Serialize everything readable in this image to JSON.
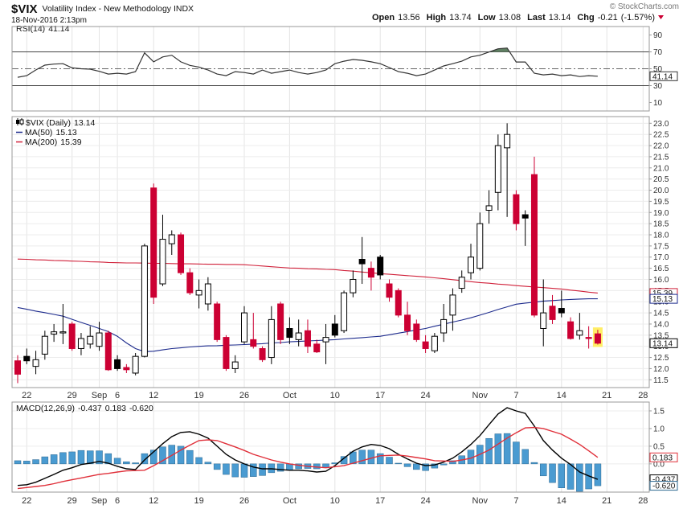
{
  "header": {
    "symbol": "$VIX",
    "name": "Volatility Index - New Methodology INDX",
    "timestamp": "18-Nov-2016 2:13pm",
    "source": "© StockCharts.com",
    "quote": [
      {
        "label": "Open",
        "value": 13.56
      },
      {
        "label": "High",
        "value": 13.74
      },
      {
        "label": "Low",
        "value": 13.08
      },
      {
        "label": "Last",
        "value": 13.14
      },
      {
        "label": "Chg",
        "value": -0.21,
        "percent": "(-1.57%)"
      }
    ],
    "change_color": "#cc0033"
  },
  "chart_data": [
    {
      "type": "line",
      "xgrid": true,
      "grid": false,
      "ylim": [
        0,
        100
      ],
      "yticks": [
        90,
        70,
        50,
        30,
        10
      ],
      "reference_lines": [
        70,
        30
      ],
      "midline": 50,
      "fill_color": "#5f7f62",
      "series": [
        {
          "name": "RSI(14)",
          "color": "#333333",
          "values": [
            39.9,
            41.8,
            48.6,
            54.3,
            55.5,
            56.0,
            51.0,
            50.0,
            49.5,
            47.0,
            43.7,
            44.7,
            43.7,
            46.6,
            68.8,
            58.2,
            64.0,
            66.0,
            58.2,
            54.0,
            52.0,
            48.5,
            43.7,
            41.8,
            46.6,
            45.5,
            43.7,
            48.5,
            44.7,
            46.6,
            48.5,
            45.5,
            43.7,
            45.5,
            48.5,
            56.0,
            59.0,
            61.0,
            60.0,
            58.2,
            56.0,
            51.4,
            46.6,
            44.7,
            41.8,
            43.7,
            48.5,
            53.3,
            56.0,
            59.0,
            64.0,
            66.0,
            69.8,
            73.6,
            74.6,
            58.0,
            58.0,
            44.7,
            42.8,
            43.7,
            41.8,
            42.8,
            40.8,
            41.8,
            41.14,
            null,
            null,
            null,
            null,
            null
          ]
        }
      ]
    },
    {
      "type": "candlestick",
      "title": "$VIX (Daily)",
      "xgrid": true,
      "grid": true,
      "up_color": "#000000",
      "down_color": "#cc0033",
      "highlight_color": "#ffee66",
      "categories": [
        null,
        "22",
        null,
        null,
        null,
        null,
        "29",
        null,
        null,
        "Sep",
        null,
        "6",
        null,
        null,
        null,
        "12",
        null,
        null,
        null,
        null,
        "19",
        null,
        null,
        null,
        null,
        "26",
        null,
        null,
        null,
        null,
        "Oct",
        null,
        null,
        null,
        null,
        "10",
        null,
        null,
        null,
        null,
        "17",
        null,
        null,
        null,
        null,
        "24",
        null,
        null,
        null,
        null,
        null,
        "Nov",
        null,
        null,
        null,
        "7",
        null,
        null,
        null,
        null,
        "14",
        null,
        null,
        null,
        null,
        "21",
        null,
        null,
        null,
        "28"
      ],
      "open": [
        12.35,
        12.55,
        12.1,
        12.65,
        13.55,
        13.6,
        14.0,
        12.9,
        13.1,
        13.0,
        13.6,
        12.4,
        12.05,
        11.8,
        12.55,
        20.1,
        15.8,
        17.6,
        18.0,
        16.3,
        15.3,
        14.9,
        14.9,
        13.4,
        12.0,
        13.2,
        13.3,
        12.9,
        12.5,
        14.9,
        13.8,
        13.3,
        13.7,
        13.1,
        13.2,
        14.0,
        13.7,
        15.4,
        16.9,
        16.5,
        17.0,
        15.8,
        15.5,
        14.4,
        14.0,
        13.2,
        12.8,
        13.6,
        14.4,
        15.6,
        16.3,
        16.5,
        19.1,
        19.9,
        21.9,
        19.8,
        18.9,
        20.7,
        13.8,
        14.8,
        14.7,
        14.1,
        13.5,
        13.4,
        13.56,
        null,
        null,
        null,
        null,
        null
      ],
      "high": [
        12.6,
        12.9,
        12.8,
        13.7,
        14.0,
        14.9,
        14.1,
        13.6,
        13.9,
        14.1,
        13.7,
        12.6,
        12.2,
        12.7,
        17.6,
        20.3,
        18.9,
        18.2,
        18.1,
        16.5,
        16.0,
        16.1,
        15.0,
        13.5,
        12.6,
        14.8,
        14.5,
        13.0,
        14.8,
        15.0,
        14.3,
        14.2,
        14.2,
        13.3,
        14.0,
        14.4,
        15.5,
        16.4,
        17.9,
        16.8,
        17.1,
        16.0,
        15.6,
        15.0,
        14.2,
        13.5,
        13.6,
        14.9,
        15.6,
        16.4,
        17.6,
        19.0,
        20.0,
        22.5,
        23.0,
        20.0,
        19.1,
        21.5,
        16.0,
        15.3,
        15.5,
        14.3,
        14.5,
        13.9,
        13.74,
        null,
        null,
        null,
        null,
        null
      ],
      "low": [
        11.35,
        12.2,
        11.75,
        12.4,
        13.2,
        13.1,
        12.8,
        12.6,
        12.9,
        12.8,
        11.9,
        11.9,
        11.8,
        11.7,
        12.5,
        14.9,
        15.7,
        17.1,
        16.2,
        15.3,
        14.7,
        14.6,
        13.2,
        11.9,
        11.8,
        13.1,
        12.9,
        12.3,
        12.2,
        13.1,
        13.1,
        13.0,
        12.7,
        12.7,
        12.2,
        13.4,
        13.6,
        15.2,
        15.8,
        15.5,
        16.0,
        15.0,
        14.3,
        13.5,
        13.2,
        12.7,
        12.7,
        13.2,
        13.7,
        15.4,
        16.0,
        16.4,
        18.5,
        19.1,
        18.8,
        18.2,
        17.5,
        14.3,
        13.0,
        14.0,
        14.3,
        13.3,
        13.3,
        12.9,
        13.08,
        null,
        null,
        null,
        null,
        null
      ],
      "close": [
        11.75,
        12.35,
        12.4,
        13.45,
        13.65,
        13.65,
        12.9,
        13.35,
        13.45,
        13.6,
        11.95,
        12.0,
        11.95,
        12.55,
        17.5,
        15.2,
        17.8,
        18.0,
        16.3,
        15.4,
        15.5,
        15.8,
        13.3,
        12.0,
        12.3,
        14.5,
        13.0,
        12.4,
        14.2,
        13.3,
        13.4,
        13.6,
        13.0,
        12.75,
        13.4,
        13.5,
        15.4,
        16.0,
        16.7,
        16.1,
        16.2,
        15.2,
        14.4,
        13.7,
        13.3,
        12.9,
        13.45,
        14.2,
        15.3,
        16.1,
        17.0,
        18.5,
        19.3,
        22.0,
        22.5,
        18.5,
        18.75,
        14.4,
        14.5,
        14.2,
        14.5,
        13.35,
        13.7,
        13.35,
        13.14,
        null,
        null,
        null,
        null,
        null
      ],
      "series": [
        {
          "name": "MA(50)",
          "color": "#1c2a8c",
          "values": [
            14.74,
            14.66,
            14.58,
            14.51,
            14.43,
            14.35,
            14.21,
            14.07,
            13.94,
            13.8,
            13.66,
            13.45,
            13.15,
            12.9,
            12.76,
            12.78,
            12.84,
            12.9,
            12.93,
            12.97,
            13.0,
            13.02,
            13.03,
            13.05,
            13.06,
            13.08,
            13.1,
            13.12,
            13.15,
            13.17,
            13.2,
            13.22,
            13.24,
            13.26,
            13.28,
            13.3,
            13.33,
            13.36,
            13.39,
            13.42,
            13.45,
            13.52,
            13.59,
            13.66,
            13.73,
            13.8,
            13.9,
            13.99,
            14.09,
            14.18,
            14.28,
            14.4,
            14.52,
            14.65,
            14.77,
            14.89,
            14.94,
            14.98,
            15.03,
            15.05,
            15.08,
            15.1,
            15.12,
            15.13,
            15.13,
            null,
            null,
            null,
            null,
            null
          ]
        },
        {
          "name": "MA(200)",
          "color": "#d0213a",
          "values": [
            16.91,
            16.9,
            16.88,
            16.87,
            16.85,
            16.84,
            16.82,
            16.81,
            16.79,
            16.78,
            16.76,
            16.75,
            16.74,
            16.74,
            16.73,
            16.72,
            16.72,
            16.71,
            16.7,
            16.7,
            16.69,
            16.68,
            16.68,
            16.67,
            16.67,
            16.66,
            16.63,
            16.6,
            16.57,
            16.54,
            16.51,
            16.5,
            16.48,
            16.47,
            16.45,
            16.44,
            16.4,
            16.37,
            16.33,
            16.3,
            16.26,
            16.23,
            16.2,
            16.17,
            16.14,
            16.11,
            16.07,
            16.03,
            15.99,
            15.94,
            15.9,
            15.86,
            15.83,
            15.79,
            15.76,
            15.72,
            15.69,
            15.66,
            15.63,
            15.6,
            15.57,
            15.52,
            15.48,
            15.43,
            15.39,
            null,
            null,
            null,
            null,
            null
          ]
        }
      ],
      "ylim": [
        11.15,
        23.3
      ],
      "yticks": [
        11.5,
        {
          "value": 12,
          "label": "12.0"
        },
        12.5,
        {
          "value": 13,
          "label": "13.0"
        },
        13.5,
        {
          "value": 14,
          "label": "14.0"
        },
        14.5,
        {
          "value": 15,
          "label": "15.0"
        },
        15.5,
        {
          "value": 16,
          "label": "16.0"
        },
        16.5,
        {
          "value": 17,
          "label": "17.0"
        },
        17.5,
        {
          "value": 18,
          "label": "18.0"
        },
        18.5,
        {
          "value": 19,
          "label": "19.0"
        },
        19.5,
        {
          "value": 20,
          "label": "20.0"
        },
        20.5,
        {
          "value": 21,
          "label": "21.0"
        },
        21.5,
        {
          "value": 22,
          "label": "22.0"
        },
        22.5,
        {
          "value": 23,
          "label": "23.0"
        }
      ]
    },
    {
      "type": "macd",
      "title": "MACD(12,26,9)",
      "xgrid": true,
      "grid": true,
      "ylim": [
        -0.8,
        1.75
      ],
      "yticks": [
        1.5,
        {
          "value": 1,
          "label": "1.0"
        },
        0.5,
        {
          "value": 0,
          "label": "0.0"
        }
      ],
      "histogram": {
        "color": "#4a9bd1",
        "edge_color": "#2b6790",
        "values": [
          0.09,
          0.08,
          0.12,
          0.2,
          0.26,
          0.32,
          0.34,
          0.38,
          0.37,
          0.37,
          0.29,
          0.16,
          0.06,
          0.03,
          0.29,
          0.39,
          0.48,
          0.53,
          0.5,
          0.38,
          0.18,
          0.05,
          -0.16,
          -0.3,
          -0.37,
          -0.38,
          -0.36,
          -0.33,
          -0.25,
          -0.21,
          -0.18,
          -0.14,
          -0.13,
          -0.14,
          -0.1,
          0.03,
          0.21,
          0.34,
          0.39,
          0.39,
          0.29,
          0.19,
          0.02,
          -0.08,
          -0.16,
          -0.19,
          -0.12,
          -0.03,
          0.09,
          0.23,
          0.39,
          0.53,
          0.72,
          0.85,
          0.86,
          0.62,
          0.41,
          0.04,
          -0.34,
          -0.53,
          -0.68,
          -0.72,
          -0.78,
          -0.71,
          -0.62,
          null,
          null,
          null,
          null,
          null
        ],
        "value_labels": [
          null,
          null,
          null,
          null,
          null,
          null,
          null,
          null,
          null,
          null,
          null,
          null,
          null,
          null,
          null,
          null,
          null,
          null,
          null,
          null,
          null,
          null,
          null,
          null,
          null,
          null,
          null,
          null,
          null,
          null,
          null,
          null,
          null,
          null,
          null,
          null,
          null,
          null,
          null,
          null,
          null,
          null,
          null,
          null,
          null,
          null,
          null,
          null,
          null,
          null,
          null,
          null,
          null,
          null,
          null,
          null,
          null,
          null,
          null,
          null,
          null,
          null,
          null,
          null,
          "-0.620",
          null,
          null,
          null,
          null,
          null
        ]
      },
      "series": [
        {
          "color": "#000000",
          "values": [
            -0.61,
            -0.59,
            -0.52,
            -0.41,
            -0.3,
            -0.18,
            -0.11,
            -0.02,
            0.02,
            0.07,
            0.02,
            -0.07,
            -0.14,
            -0.16,
            0.11,
            0.34,
            0.57,
            0.77,
            0.89,
            0.91,
            0.84,
            0.73,
            0.5,
            0.27,
            0.11,
            0.0,
            -0.09,
            -0.14,
            -0.14,
            -0.16,
            -0.18,
            -0.18,
            -0.2,
            -0.23,
            -0.21,
            -0.05,
            0.16,
            0.36,
            0.48,
            0.55,
            0.52,
            0.43,
            0.27,
            0.14,
            0.02,
            -0.05,
            -0.03,
            0.05,
            0.16,
            0.34,
            0.55,
            0.8,
            1.11,
            1.41,
            1.59,
            1.5,
            1.43,
            1.07,
            0.66,
            0.39,
            0.16,
            -0.02,
            -0.23,
            -0.34,
            -0.437,
            null,
            null,
            null,
            null,
            null
          ]
        },
        {
          "color": "#e0303a",
          "values": [
            -0.7,
            -0.67,
            -0.64,
            -0.61,
            -0.56,
            -0.5,
            -0.45,
            -0.4,
            -0.35,
            -0.3,
            -0.27,
            -0.23,
            -0.2,
            -0.19,
            -0.18,
            -0.05,
            0.09,
            0.24,
            0.39,
            0.53,
            0.66,
            0.68,
            0.66,
            0.57,
            0.48,
            0.38,
            0.27,
            0.19,
            0.11,
            0.05,
            0.0,
            -0.04,
            -0.07,
            -0.09,
            -0.11,
            -0.08,
            -0.05,
            0.02,
            0.09,
            0.16,
            0.23,
            0.24,
            0.25,
            0.22,
            0.18,
            0.14,
            0.09,
            0.08,
            0.07,
            0.11,
            0.16,
            0.27,
            0.39,
            0.56,
            0.73,
            0.88,
            1.02,
            1.03,
            1.0,
            0.92,
            0.84,
            0.7,
            0.55,
            0.37,
            0.183,
            null,
            null,
            null,
            null,
            null
          ]
        }
      ]
    }
  ]
}
